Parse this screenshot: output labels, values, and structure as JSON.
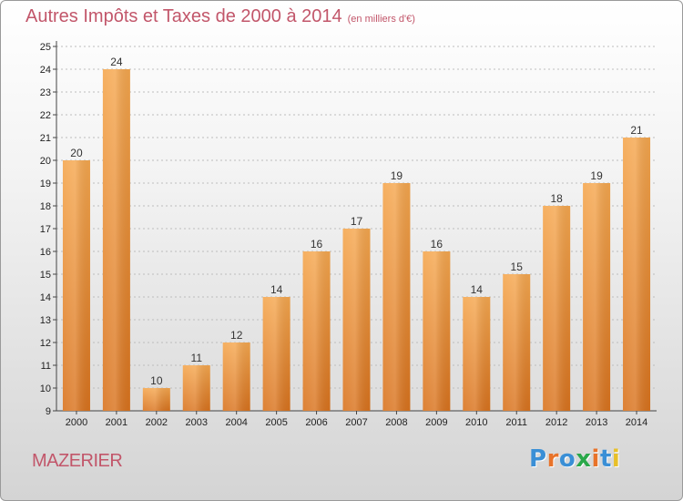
{
  "header": {
    "title": "Autres Impôts et Taxes de 2000 à 2014",
    "subtitle": "(en milliers d'€)"
  },
  "footer": {
    "town": "MAZERIER",
    "logo_text": "Proxiti",
    "logo_colors": [
      "#3a8fd6",
      "#e8732a",
      "#3a8fd6",
      "#2aa84a",
      "#e8732a",
      "#3a8fd6",
      "#e8c02a"
    ]
  },
  "colors": {
    "title": "#c2566a",
    "bar_light": "#f5a74f",
    "bar_dark": "#d9731e",
    "grid": "#bdbdbd"
  },
  "chart_data": {
    "type": "bar",
    "categories": [
      "2000",
      "2001",
      "2002",
      "2003",
      "2004",
      "2005",
      "2006",
      "2007",
      "2008",
      "2009",
      "2010",
      "2011",
      "2012",
      "2013",
      "2014"
    ],
    "values": [
      20,
      24,
      10,
      11,
      12,
      14,
      16,
      17,
      19,
      16,
      14,
      15,
      18,
      19,
      21
    ],
    "title": "Autres Impôts et Taxes de 2000 à 2014",
    "xlabel": "",
    "ylabel": "",
    "ylim": [
      9,
      25
    ],
    "yticks": [
      9,
      10,
      11,
      12,
      13,
      14,
      15,
      16,
      17,
      18,
      19,
      20,
      21,
      22,
      23,
      24,
      25
    ],
    "grid": true
  }
}
